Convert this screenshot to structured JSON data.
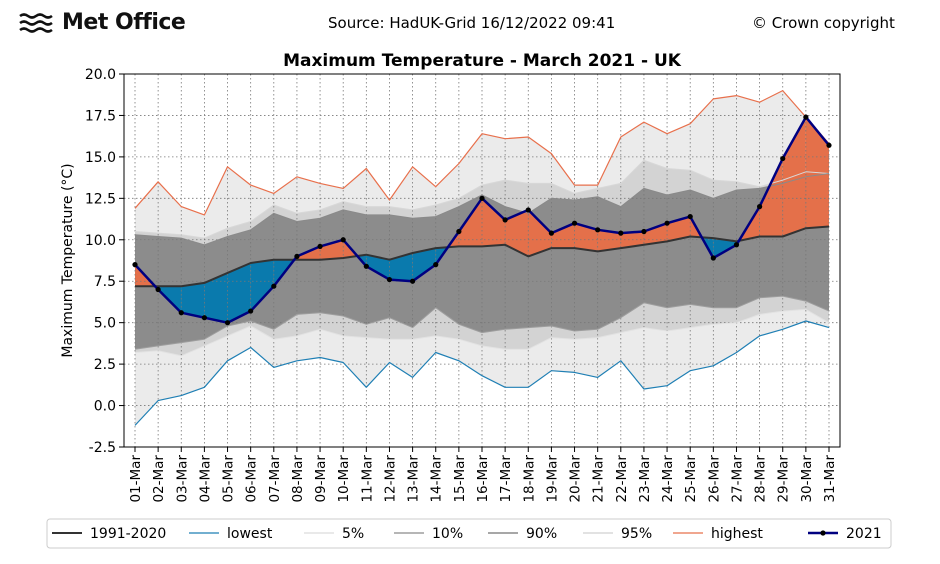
{
  "header": {
    "logo_text": "Met Office",
    "source": "Source: HadUK-Grid 16/12/2022 09:41",
    "copyright": "© Crown copyright"
  },
  "chart_data": {
    "type": "line",
    "title": "Maximum Temperature - March 2021 - UK",
    "xlabel": "",
    "ylabel": "Maximum Temperature (°C)",
    "ylim": [
      -2.5,
      20.0
    ],
    "yticks": [
      "-2.5",
      "0.0",
      "2.5",
      "5.0",
      "7.5",
      "10.0",
      "12.5",
      "15.0",
      "17.5",
      "20.0"
    ],
    "ytick_values": [
      -2.5,
      0.0,
      2.5,
      5.0,
      7.5,
      10.0,
      12.5,
      15.0,
      17.5,
      20.0
    ],
    "grid": true,
    "legend_position": "bottom",
    "categories": [
      "01-Mar",
      "02-Mar",
      "03-Mar",
      "04-Mar",
      "05-Mar",
      "06-Mar",
      "07-Mar",
      "08-Mar",
      "09-Mar",
      "10-Mar",
      "11-Mar",
      "12-Mar",
      "13-Mar",
      "14-Mar",
      "15-Mar",
      "16-Mar",
      "17-Mar",
      "18-Mar",
      "19-Mar",
      "20-Mar",
      "21-Mar",
      "22-Mar",
      "23-Mar",
      "24-Mar",
      "25-Mar",
      "26-Mar",
      "27-Mar",
      "28-Mar",
      "29-Mar",
      "30-Mar",
      "31-Mar"
    ],
    "colors": {
      "band_outer": "#ebebeb",
      "band_mid": "#d3d3d3",
      "band_inner": "#8c8c8c",
      "above_fill": "#e4704a",
      "below_fill": "#0a7aad",
      "mean": "#333333",
      "lowest": "#1f7fb4",
      "highest": "#e8704c",
      "pct5": "#e2e2e2",
      "pct95": "#d8d8d8",
      "pct10": "#9e9e9e",
      "pct90": "#8a8a8a",
      "year": "#000080"
    },
    "series": [
      {
        "name": "1991-2020",
        "key": "mean",
        "values": [
          7.2,
          7.2,
          7.2,
          7.4,
          8.0,
          8.6,
          8.8,
          8.8,
          8.8,
          8.9,
          9.1,
          8.8,
          9.2,
          9.5,
          9.6,
          9.6,
          9.7,
          9.0,
          9.5,
          9.5,
          9.3,
          9.5,
          9.7,
          9.9,
          10.2,
          10.1,
          9.9,
          10.2,
          10.2,
          10.7,
          10.8
        ]
      },
      {
        "name": "lowest",
        "key": "lowest",
        "values": [
          -1.2,
          0.3,
          0.6,
          1.1,
          2.7,
          3.5,
          2.3,
          2.7,
          2.9,
          2.6,
          1.1,
          2.6,
          1.7,
          3.2,
          2.7,
          1.8,
          1.1,
          1.1,
          2.1,
          2.0,
          1.7,
          2.7,
          1.0,
          1.2,
          2.1,
          2.4,
          3.2,
          4.2,
          4.6,
          5.1,
          4.7
        ]
      },
      {
        "name": "5%",
        "key": "p5",
        "values": [
          3.2,
          3.3,
          3.0,
          3.6,
          4.2,
          4.8,
          4.0,
          4.2,
          4.6,
          4.2,
          4.1,
          4.0,
          4.0,
          4.2,
          4.0,
          3.6,
          3.4,
          3.4,
          4.1,
          4.0,
          4.1,
          4.4,
          4.7,
          4.5,
          4.7,
          4.9,
          5.0,
          5.5,
          5.7,
          5.8,
          5.0
        ]
      },
      {
        "name": "10%",
        "key": "p10",
        "values": [
          3.4,
          3.6,
          3.8,
          4.0,
          4.8,
          5.1,
          4.6,
          5.5,
          5.6,
          5.4,
          4.9,
          5.3,
          4.7,
          5.9,
          4.9,
          4.4,
          4.6,
          4.7,
          4.8,
          4.5,
          4.6,
          5.3,
          6.2,
          5.9,
          6.1,
          5.9,
          5.9,
          6.5,
          6.6,
          6.3,
          5.7
        ]
      },
      {
        "name": "90%",
        "key": "p90",
        "values": [
          10.3,
          10.2,
          10.1,
          9.7,
          10.2,
          10.6,
          11.6,
          11.1,
          11.3,
          11.8,
          11.5,
          11.5,
          11.3,
          11.4,
          12.0,
          12.7,
          12.0,
          11.6,
          12.5,
          12.4,
          12.6,
          12.0,
          13.1,
          12.7,
          13.0,
          12.5,
          13.0,
          13.1,
          13.4,
          13.8,
          14.0
        ]
      },
      {
        "name": "95%",
        "key": "p95",
        "values": [
          10.5,
          10.4,
          10.3,
          10.1,
          10.7,
          11.1,
          12.1,
          11.6,
          11.8,
          12.3,
          12.0,
          12.0,
          11.8,
          12.1,
          12.5,
          13.3,
          13.6,
          13.4,
          13.4,
          12.8,
          13.1,
          13.4,
          14.8,
          14.3,
          14.2,
          13.6,
          13.5,
          13.2,
          13.6,
          14.1,
          14.0
        ]
      },
      {
        "name": "highest",
        "key": "highest",
        "values": [
          11.9,
          13.5,
          12.0,
          11.5,
          14.4,
          13.3,
          12.8,
          13.8,
          13.4,
          13.1,
          14.3,
          12.4,
          14.4,
          13.2,
          14.6,
          16.4,
          16.1,
          16.2,
          15.2,
          13.3,
          13.3,
          16.2,
          17.1,
          16.4,
          17.0,
          18.5,
          18.7,
          18.3,
          19.0,
          17.4,
          15.8
        ]
      },
      {
        "name": "2021",
        "key": "year",
        "values": [
          8.5,
          7.0,
          5.6,
          5.3,
          5.0,
          5.7,
          7.2,
          9.0,
          9.6,
          10.0,
          8.4,
          7.6,
          7.5,
          8.5,
          10.5,
          12.5,
          11.2,
          11.8,
          10.4,
          11.0,
          10.6,
          10.4,
          10.5,
          11.0,
          11.4,
          8.9,
          9.7,
          12.0,
          14.9,
          17.4,
          15.7
        ]
      }
    ]
  }
}
